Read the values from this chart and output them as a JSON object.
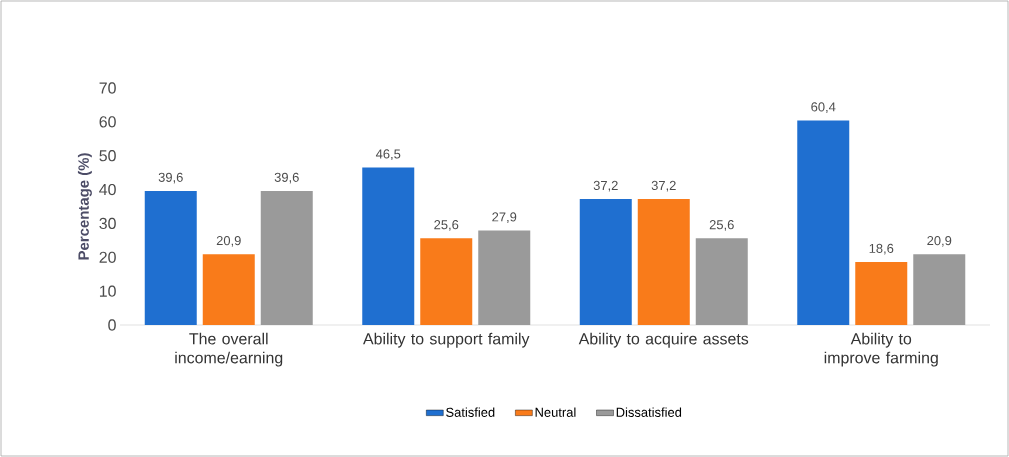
{
  "chart_data": {
    "type": "bar",
    "ylabel": "Percentage (%)",
    "categories": [
      "The overall income/earning",
      "Ability to support family",
      "Ability to acquire assets",
      "Ability to improve farming"
    ],
    "series": [
      {
        "name": "Satisfied",
        "color": "#1f6fd0",
        "values": [
          39.6,
          46.5,
          37.2,
          60.4
        ],
        "value_labels": [
          "39,6",
          "46,5",
          "37,2",
          "60,4"
        ]
      },
      {
        "name": "Neutral",
        "color": "#f97b1a",
        "values": [
          20.9,
          25.6,
          37.2,
          18.6
        ],
        "value_labels": [
          "20,9",
          "25,6",
          "37,2",
          "18,6"
        ]
      },
      {
        "name": "Dissatisfied",
        "color": "#9a9a9a",
        "values": [
          39.6,
          27.9,
          25.6,
          20.9
        ],
        "value_labels": [
          "39,6",
          "27,9",
          "25,6",
          "20,9"
        ]
      }
    ],
    "ylim": [
      0,
      70
    ],
    "yticks": [
      0,
      10,
      20,
      30,
      40,
      50,
      60,
      70
    ],
    "legend": "bottom"
  }
}
